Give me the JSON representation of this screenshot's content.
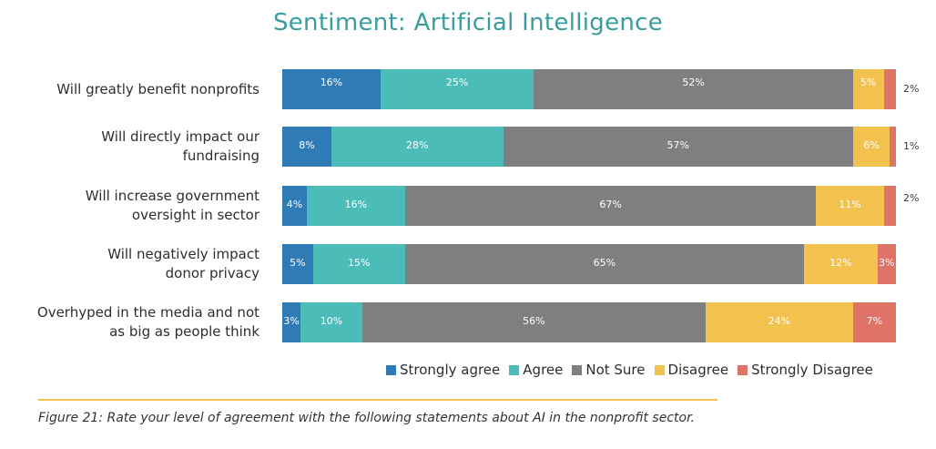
{
  "chart_data": {
    "type": "bar",
    "orientation": "horizontal",
    "stacked": true,
    "title": "Sentiment: Artificial Intelligence",
    "categories": [
      "Will greatly benefit nonprofits",
      "Will directly impact our fundraising",
      "Will increase government oversight in sector",
      "Will negatively impact donor privacy",
      "Overhyped in the media and not as big as people think"
    ],
    "series": [
      {
        "name": "Strongly agree",
        "color": "#2e7bb5",
        "values": [
          16,
          8,
          4,
          5,
          3
        ]
      },
      {
        "name": "Agree",
        "color": "#4cbcb9",
        "values": [
          25,
          28,
          16,
          15,
          10
        ]
      },
      {
        "name": "Not Sure",
        "color": "#7f7f7f",
        "values": [
          52,
          57,
          67,
          65,
          56
        ]
      },
      {
        "name": "Disagree",
        "color": "#f2c14e",
        "values": [
          5,
          6,
          11,
          12,
          24
        ]
      },
      {
        "name": "Strongly Disagree",
        "color": "#e07368",
        "values": [
          2,
          1,
          2,
          3,
          7
        ]
      }
    ],
    "value_suffix": "%",
    "legend_position": "bottom-right",
    "grid": false,
    "xlim": [
      0,
      100
    ]
  },
  "caption": "Figure 21: Rate your level of agreement with the following statements about AI in the nonprofit sector."
}
